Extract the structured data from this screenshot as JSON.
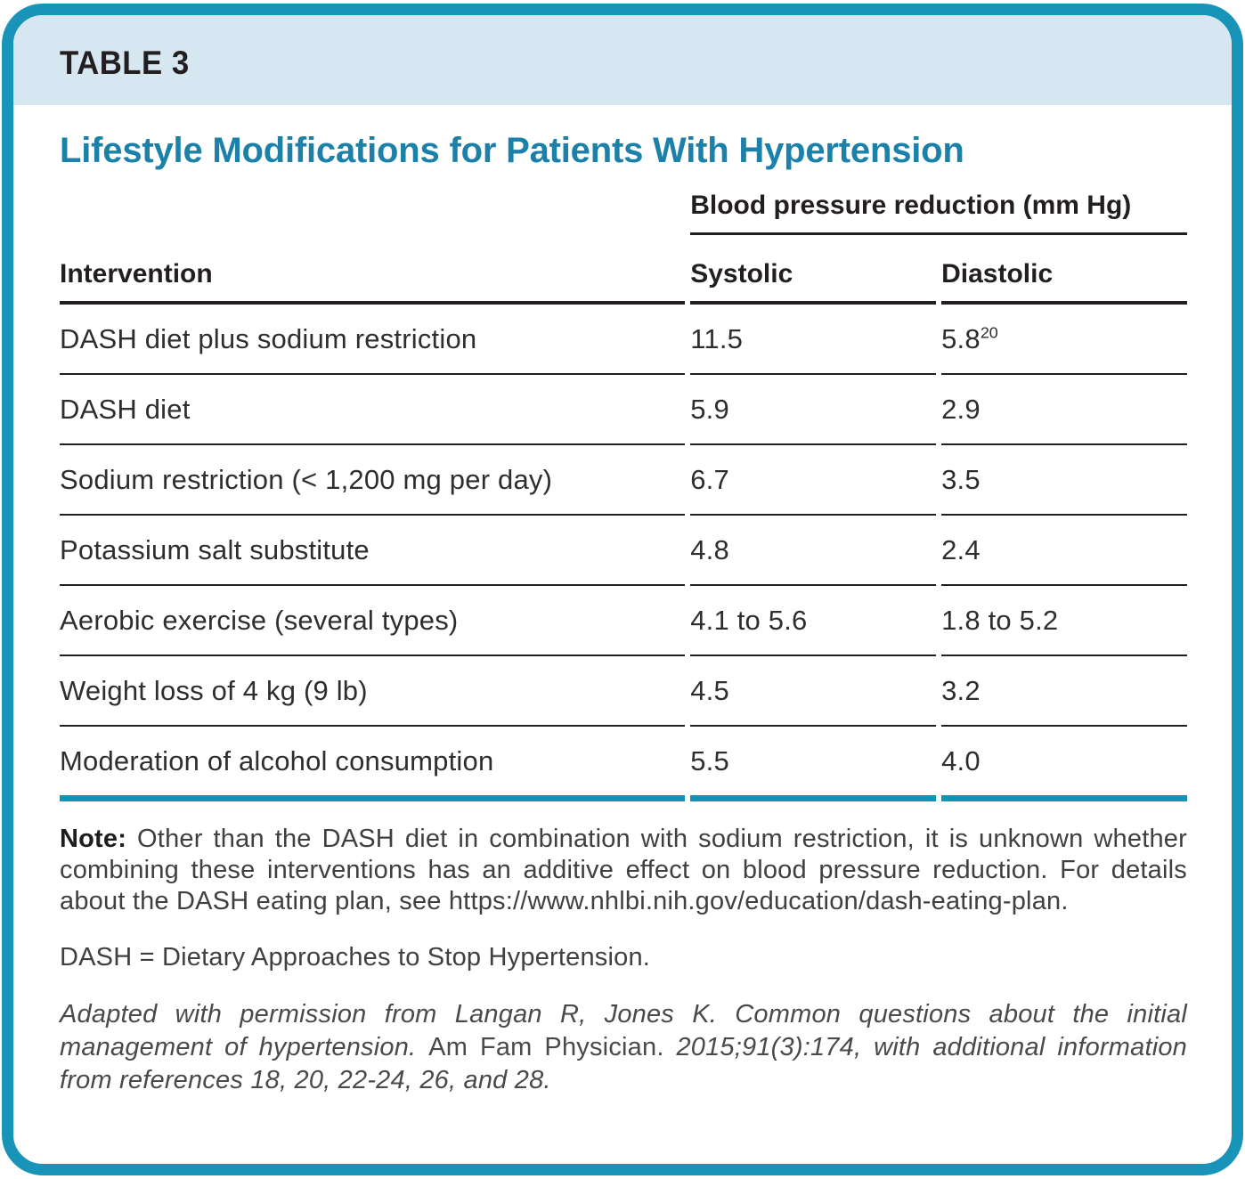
{
  "card": {
    "table_label": "TABLE 3",
    "title": "Lifestyle Modifications for Patients With Hypertension"
  },
  "table": {
    "group_header": "Blood pressure reduction (mm Hg)",
    "columns": [
      "Intervention",
      "Systolic",
      "Diastolic"
    ],
    "rows": [
      {
        "intervention": "DASH diet plus sodium restriction",
        "systolic": "11.5",
        "diastolic": "5.8",
        "diastolic_sup": "20"
      },
      {
        "intervention": "DASH diet",
        "systolic": "5.9",
        "diastolic": "2.9"
      },
      {
        "intervention": "Sodium restriction (< 1,200 mg per day)",
        "systolic": "6.7",
        "diastolic": "3.5"
      },
      {
        "intervention": "Potassium salt substitute",
        "systolic": "4.8",
        "diastolic": "2.4"
      },
      {
        "intervention": "Aerobic exercise (several types)",
        "systolic": "4.1 to 5.6",
        "diastolic": "1.8 to 5.2"
      },
      {
        "intervention": "Weight loss of 4 kg (9 lb)",
        "systolic": "4.5",
        "diastolic": "3.2"
      },
      {
        "intervention": "Moderation of alcohol consumption",
        "systolic": "5.5",
        "diastolic": "4.0"
      }
    ]
  },
  "notes": {
    "note_label": "Note:",
    "note_text": " Other than the DASH diet in combination with sodium restriction, it is unknown whether combining these interventions has an additive effect on blood pressure reduction. For details about the DASH eating plan, see https://www.nhlbi.nih.gov/education/dash-eating-plan.",
    "abbreviation": "DASH = Dietary Approaches to Stop Hypertension.",
    "attribution_pre": "Adapted with permission from Langan R, Jones K. Common questions about the initial management of hypertension. ",
    "attribution_journal": "Am Fam Physician.",
    "attribution_post": " 2015;91(3):174, with additional information from references 18, 20, 22-24, 26, and 28."
  },
  "colors": {
    "card_border_teal": "#1794b7",
    "header_band_blue": "#d6e7f2",
    "title_blue": "#1b81a8",
    "table_rule_black": "#231f20",
    "bottom_rule_teal": "#1492b8"
  }
}
